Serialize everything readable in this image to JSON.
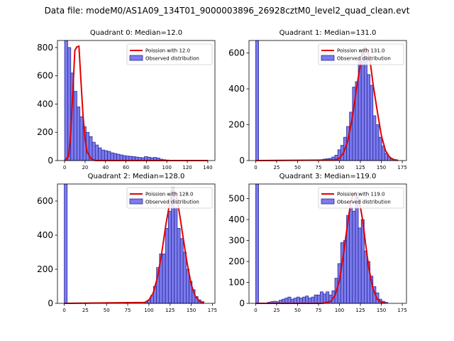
{
  "figure": {
    "suptitle": "Data file: modeM0/AS1A09_134T01_9000003896_26928cztM0_level2_quad_clean.evt"
  },
  "colors": {
    "bar_fill": "#7b7bee",
    "bar_edge": "#2b2b99",
    "curve": "#e00000"
  },
  "chart_data": [
    {
      "type": "bar",
      "title": "Quadrant 0: Median=12.0",
      "xlim": [
        -7,
        147
      ],
      "ylim": [
        0,
        850
      ],
      "xticks": [
        0,
        20,
        40,
        60,
        80,
        100,
        120,
        140
      ],
      "yticks": [
        0,
        200,
        400,
        600,
        800
      ],
      "bin_width": 3,
      "bins": [
        0,
        3,
        6,
        9,
        12,
        15,
        18,
        21,
        24,
        27,
        30,
        33,
        36,
        39,
        42,
        45,
        48,
        51,
        54,
        57,
        60,
        63,
        66,
        69,
        72,
        75,
        78,
        81,
        84,
        87,
        90,
        93,
        96,
        99
      ],
      "values": [
        850,
        800,
        620,
        490,
        380,
        310,
        240,
        200,
        170,
        130,
        110,
        90,
        75,
        70,
        65,
        55,
        50,
        45,
        40,
        35,
        32,
        30,
        28,
        25,
        22,
        20,
        28,
        24,
        20,
        22,
        18,
        10,
        6,
        4
      ],
      "curve": {
        "x": [
          0,
          4,
          6,
          8,
          10,
          12,
          14,
          16,
          18,
          20,
          22,
          26,
          30,
          50,
          140
        ],
        "y": [
          0,
          30,
          200,
          480,
          780,
          805,
          810,
          560,
          320,
          150,
          60,
          12,
          0,
          0,
          0
        ]
      },
      "legend": [
        "Poission with 12.0",
        "Observed distribution"
      ]
    },
    {
      "type": "bar",
      "title": "Quadrant 1: Median=131.0",
      "xlim": [
        -8,
        180
      ],
      "ylim": [
        0,
        670
      ],
      "xticks": [
        0,
        25,
        50,
        75,
        100,
        125,
        150,
        175
      ],
      "yticks": [
        0,
        200,
        400,
        600
      ],
      "bin_width": 3.5,
      "bins": [
        0,
        77,
        80.5,
        84,
        87.5,
        91,
        94.5,
        98,
        101.5,
        105,
        108.5,
        112,
        115.5,
        119,
        122.5,
        126,
        129.5,
        133,
        136.5,
        140,
        143.5,
        147,
        150.5,
        154,
        157.5,
        161,
        164.5
      ],
      "values": [
        670,
        5,
        8,
        10,
        12,
        20,
        30,
        60,
        85,
        130,
        190,
        270,
        410,
        440,
        560,
        620,
        580,
        480,
        420,
        250,
        200,
        130,
        80,
        40,
        20,
        10,
        5
      ],
      "curve": {
        "x": [
          0,
          95,
          100,
          105,
          110,
          115,
          120,
          125,
          128,
          131,
          134,
          137,
          140,
          145,
          150,
          155,
          160,
          165,
          170
        ],
        "y": [
          0,
          3,
          12,
          45,
          110,
          230,
          390,
          540,
          600,
          630,
          600,
          540,
          430,
          280,
          140,
          55,
          18,
          5,
          1
        ]
      },
      "legend": [
        "Poission with 131.0",
        "Observed distribution"
      ]
    },
    {
      "type": "bar",
      "title": "Quadrant 2: Median=128.0",
      "xlim": [
        -8,
        178
      ],
      "ylim": [
        0,
        700
      ],
      "xticks": [
        0,
        25,
        50,
        75,
        100,
        125,
        150,
        175
      ],
      "yticks": [
        0,
        200,
        400,
        600
      ],
      "bin_width": 3.5,
      "bins": [
        0,
        70,
        95,
        98.5,
        102,
        105.5,
        109,
        112.5,
        116,
        119.5,
        123,
        126.5,
        130,
        133.5,
        137,
        140.5,
        144,
        147.5,
        151,
        154.5,
        158,
        161.5
      ],
      "values": [
        700,
        5,
        8,
        20,
        45,
        100,
        210,
        290,
        290,
        440,
        540,
        680,
        560,
        440,
        380,
        300,
        200,
        130,
        80,
        40,
        20,
        10
      ],
      "curve": {
        "x": [
          0,
          95,
          100,
          105,
          110,
          115,
          120,
          125,
          128,
          131,
          134,
          137,
          140,
          145,
          150,
          155,
          160,
          165
        ],
        "y": [
          0,
          5,
          20,
          60,
          150,
          290,
          460,
          600,
          660,
          650,
          590,
          500,
          400,
          240,
          110,
          40,
          12,
          2
        ]
      },
      "legend": [
        "Poission with 128.0",
        "Observed distribution"
      ]
    },
    {
      "type": "bar",
      "title": "Quadrant 3: Median=119.0",
      "xlim": [
        -8,
        180
      ],
      "ylim": [
        0,
        570
      ],
      "xticks": [
        0,
        25,
        50,
        75,
        100,
        125,
        150,
        175
      ],
      "yticks": [
        0,
        100,
        200,
        300,
        400,
        500
      ],
      "bin_width": 3.5,
      "bins": [
        0,
        14,
        17.5,
        21,
        24.5,
        28,
        31.5,
        35,
        38.5,
        42,
        45.5,
        49,
        52.5,
        56,
        59.5,
        63,
        66.5,
        70,
        73.5,
        77,
        80.5,
        84,
        87.5,
        91,
        94.5,
        98,
        101.5,
        105,
        108.5,
        112,
        115.5,
        119,
        122.5,
        126,
        129.5,
        133,
        136.5,
        140,
        143.5,
        147,
        150.5,
        154
      ],
      "values": [
        570,
        5,
        8,
        10,
        8,
        15,
        20,
        25,
        30,
        20,
        25,
        30,
        25,
        30,
        35,
        25,
        30,
        40,
        40,
        55,
        45,
        55,
        40,
        60,
        120,
        190,
        290,
        300,
        420,
        460,
        440,
        530,
        360,
        400,
        250,
        200,
        130,
        80,
        50,
        20,
        10,
        5
      ],
      "curve": {
        "x": [
          0,
          80,
          90,
          95,
          100,
          105,
          110,
          113,
          116,
          119,
          122,
          125,
          128,
          131,
          135,
          140,
          145,
          150,
          155
        ],
        "y": [
          0,
          0,
          10,
          40,
          110,
          240,
          390,
          470,
          520,
          530,
          510,
          460,
          390,
          290,
          170,
          70,
          20,
          5,
          1
        ]
      },
      "legend": [
        "Poission with 119.0",
        "Observed distribution"
      ]
    }
  ]
}
